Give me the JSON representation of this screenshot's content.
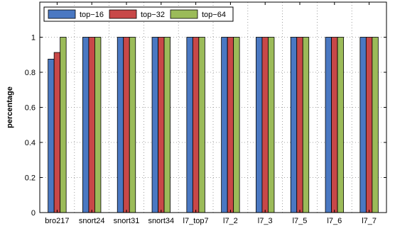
{
  "chart_data": {
    "type": "bar",
    "title": "",
    "xlabel": "",
    "ylabel": "percentage",
    "ylim": [
      0,
      1.2
    ],
    "yticks": [
      0,
      0.2,
      0.4,
      0.6,
      0.8,
      1
    ],
    "grid": true,
    "legend_position": "top-left",
    "categories": [
      "bro217",
      "snort24",
      "snort31",
      "snort34",
      "l7_top7",
      "l7_2",
      "l7_3",
      "l7_5",
      "l7_6",
      "l7_7"
    ],
    "series": [
      {
        "name": "top−16",
        "color": "#4a78c2",
        "values": [
          0.875,
          1,
          1,
          1,
          1,
          1,
          1,
          1,
          1,
          1
        ]
      },
      {
        "name": "top−32",
        "color": "#c84848",
        "values": [
          0.913,
          1,
          1,
          1,
          1,
          1,
          1,
          1,
          1,
          1
        ]
      },
      {
        "name": "top−64",
        "color": "#9bbb59",
        "values": [
          1,
          1,
          1,
          1,
          1,
          1,
          1,
          1,
          1,
          1
        ]
      }
    ]
  }
}
